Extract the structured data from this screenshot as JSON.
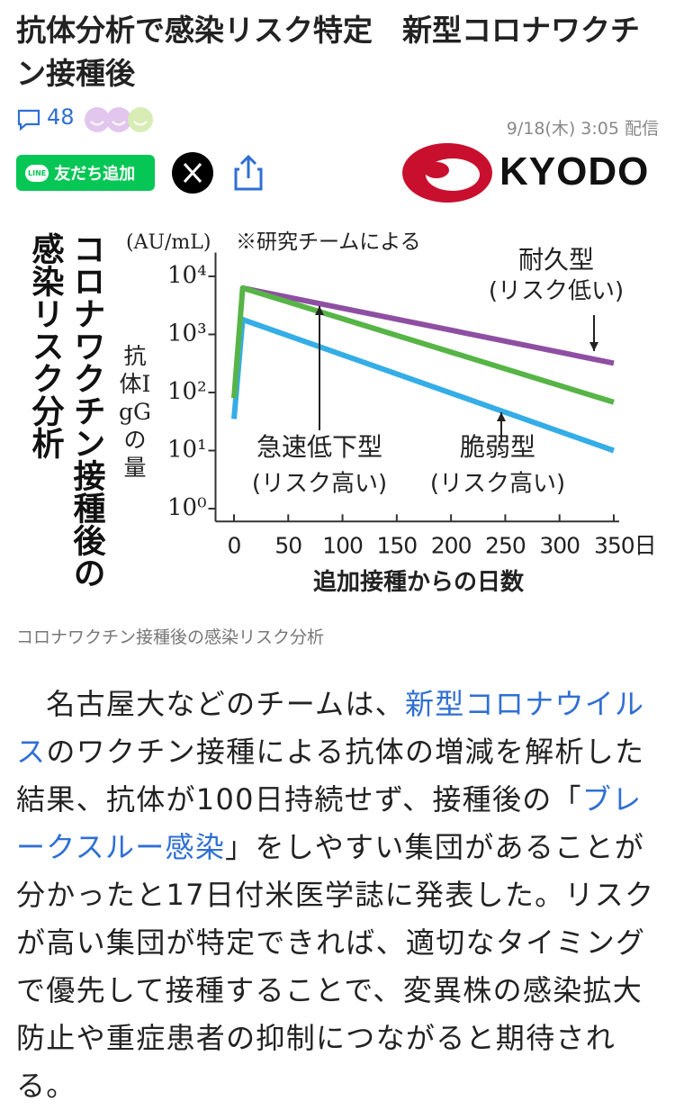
{
  "header": {
    "title": "抗体分析で感染リスク特定　新型コロナワクチン接種後",
    "comments": 48,
    "date": "9/18(木) 3:05 配信"
  },
  "share": {
    "line_badge": "LINE",
    "line_button": "友だち追加",
    "publisher": "KYODO"
  },
  "figure": {
    "chart": {
      "type": "line",
      "title_lines": [
        "コロナワクチン接種後の",
        "感染リスク分析"
      ],
      "unit": "(AU/mL)",
      "source_note": "※研究チームによる",
      "y_label": "抗体IgGの量",
      "x_label": "追加接種からの日数",
      "log_y": true,
      "grid": false,
      "xlim": [
        -17,
        355
      ],
      "ylim": [
        0.6,
        18000
      ],
      "xticks": [
        0,
        50,
        100,
        150,
        200,
        250,
        300,
        {
          "value": 350,
          "label": "350日"
        }
      ],
      "yticks": [
        {
          "value": 1,
          "label": "10⁰"
        },
        {
          "value": 10,
          "label": "10¹"
        },
        {
          "value": 100,
          "label": "10²"
        },
        {
          "value": 1000,
          "label": "10³"
        },
        {
          "value": 10000,
          "label": "10⁴"
        }
      ],
      "series": [
        {
          "name": "耐久型",
          "risk": "(リスク低い)",
          "color": "#8e4fa3",
          "x": [
            8,
            350
          ],
          "values": [
            6300,
            320
          ]
        },
        {
          "name": "急速低下型",
          "risk": "(リスク高い)",
          "color": "#57b446",
          "x": [
            0,
            8,
            350
          ],
          "values": [
            80,
            6300,
            68
          ]
        },
        {
          "name": "脆弱型",
          "risk": "(リスク高い)",
          "color": "#35ade6",
          "x": [
            0,
            8,
            350
          ],
          "values": [
            35,
            1800,
            10
          ]
        }
      ]
    },
    "caption": "コロナワクチン接種後の感染リスク分析"
  },
  "body": {
    "segments": [
      {
        "text": "　名古屋大などのチームは、",
        "link": false
      },
      {
        "text": "新型コロナウイルス",
        "link": true
      },
      {
        "text": "のワクチン接種による抗体の増減を解析した結果、抗体が100日持続せず、接種後の「",
        "link": false
      },
      {
        "text": "ブレークスルー感染",
        "link": true
      },
      {
        "text": "」をしやすい集団があることが分かったと17日付米医学誌に発表した。リスクが高い集団が特定できれば、適切なタイミングで優先して接種することで、変異株の感染拡大防止や重症患者の抑制につながると期待される。",
        "link": false
      }
    ]
  }
}
